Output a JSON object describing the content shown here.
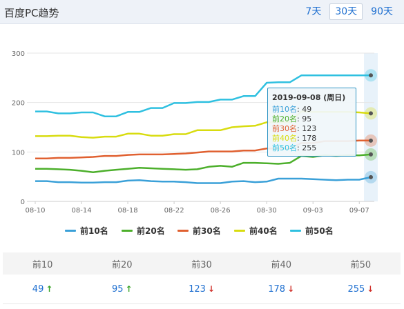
{
  "header": {
    "title": "百度PC趋势",
    "ranges": [
      {
        "label": "7天",
        "active": false
      },
      {
        "label": "30天",
        "active": true
      },
      {
        "label": "90天",
        "active": false
      }
    ]
  },
  "chart_data": {
    "type": "line",
    "x": [
      "08-10",
      "08-11",
      "08-12",
      "08-13",
      "08-14",
      "08-15",
      "08-16",
      "08-17",
      "08-18",
      "08-19",
      "08-20",
      "08-21",
      "08-22",
      "08-23",
      "08-24",
      "08-25",
      "08-26",
      "08-27",
      "08-28",
      "08-29",
      "08-30",
      "08-31",
      "09-01",
      "09-02",
      "09-03",
      "09-04",
      "09-05",
      "09-06",
      "09-07",
      "09-08"
    ],
    "xticks": [
      "08-10",
      "08-14",
      "08-18",
      "08-22",
      "08-26",
      "08-30",
      "09-03",
      "09-07"
    ],
    "yticks": [
      0,
      100,
      200,
      300
    ],
    "ylim": [
      0,
      300
    ],
    "series": [
      {
        "name": "前10名",
        "color": "#3aa0d8",
        "values": [
          41,
          41,
          39,
          39,
          38,
          38,
          39,
          39,
          42,
          43,
          41,
          40,
          40,
          39,
          37,
          37,
          37,
          40,
          41,
          39,
          40,
          46,
          46,
          46,
          45,
          44,
          43,
          44,
          44,
          49
        ]
      },
      {
        "name": "前20名",
        "color": "#4caf2b",
        "values": [
          66,
          66,
          65,
          64,
          62,
          59,
          62,
          64,
          66,
          68,
          67,
          66,
          65,
          64,
          65,
          70,
          72,
          70,
          78,
          78,
          77,
          76,
          78,
          92,
          90,
          93,
          92,
          93,
          93,
          95
        ]
      },
      {
        "name": "前30名",
        "color": "#e06030",
        "values": [
          87,
          87,
          88,
          88,
          89,
          90,
          92,
          92,
          94,
          95,
          95,
          95,
          96,
          97,
          99,
          101,
          101,
          101,
          103,
          103,
          107,
          107,
          107,
          118,
          118,
          122,
          122,
          122,
          123,
          123
        ]
      },
      {
        "name": "前40名",
        "color": "#d8dc10",
        "values": [
          132,
          132,
          133,
          133,
          130,
          129,
          131,
          131,
          137,
          137,
          133,
          133,
          136,
          136,
          144,
          144,
          144,
          150,
          152,
          153,
          160,
          160,
          160,
          182,
          181,
          181,
          181,
          181,
          180,
          178
        ]
      },
      {
        "name": "前50名",
        "color": "#2fc0e0",
        "values": [
          182,
          182,
          178,
          178,
          180,
          180,
          172,
          172,
          181,
          181,
          189,
          189,
          199,
          199,
          201,
          201,
          206,
          206,
          213,
          213,
          240,
          241,
          241,
          255,
          255,
          255,
          255,
          255,
          255,
          255
        ]
      }
    ]
  },
  "tooltip": {
    "title": "2019-09-08 (周日)",
    "lines": [
      {
        "label": "前10名",
        "value": "49",
        "color": "#3aa0d8"
      },
      {
        "label": "前20名",
        "value": "95",
        "color": "#4caf2b"
      },
      {
        "label": "前30名",
        "value": "123",
        "color": "#e06030"
      },
      {
        "label": "前40名",
        "value": "178",
        "color": "#d8dc10"
      },
      {
        "label": "前50名",
        "value": "255",
        "color": "#2fc0e0"
      }
    ]
  },
  "stats": {
    "headers": [
      "前10",
      "前20",
      "前30",
      "前40",
      "前50"
    ],
    "values": [
      {
        "value": "49",
        "trend": "up"
      },
      {
        "value": "95",
        "trend": "up"
      },
      {
        "value": "123",
        "trend": "down"
      },
      {
        "value": "178",
        "trend": "down"
      },
      {
        "value": "255",
        "trend": "down"
      }
    ]
  }
}
